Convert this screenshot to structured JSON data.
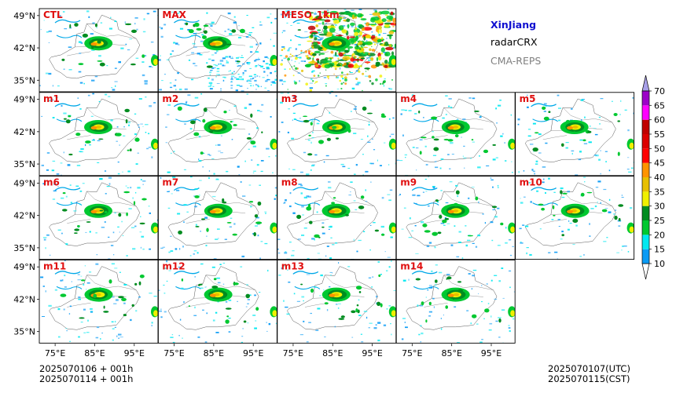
{
  "header": {
    "region": "XinJiang",
    "product": "radarCRX",
    "system": "CMA-REPS",
    "region_color": "#1010d0",
    "product_color": "#000000",
    "system_color": "#808080"
  },
  "footer": {
    "init_line1": "2025070106  +  001h",
    "init_line2": "2025070114  +  001h",
    "valid_utc": "2025070107(UTC)",
    "valid_cst": "2025070115(CST)"
  },
  "chart_data": {
    "type": "heatmap",
    "panel_label_color": "#e01010",
    "panels": [
      {
        "label": "CTL",
        "row": 0,
        "col": 0
      },
      {
        "label": "MAX",
        "row": 0,
        "col": 1
      },
      {
        "label": "MESO_1km",
        "row": 0,
        "col": 2
      },
      {
        "label": "m1",
        "row": 1,
        "col": 0
      },
      {
        "label": "m2",
        "row": 1,
        "col": 1
      },
      {
        "label": "m3",
        "row": 1,
        "col": 2
      },
      {
        "label": "m4",
        "row": 1,
        "col": 3
      },
      {
        "label": "m5",
        "row": 1,
        "col": 4
      },
      {
        "label": "m6",
        "row": 2,
        "col": 0
      },
      {
        "label": "m7",
        "row": 2,
        "col": 1
      },
      {
        "label": "m8",
        "row": 2,
        "col": 2
      },
      {
        "label": "m9",
        "row": 2,
        "col": 3
      },
      {
        "label": "m10",
        "row": 2,
        "col": 4
      },
      {
        "label": "m11",
        "row": 3,
        "col": 0
      },
      {
        "label": "m12",
        "row": 3,
        "col": 1
      },
      {
        "label": "m13",
        "row": 3,
        "col": 2
      },
      {
        "label": "m14",
        "row": 3,
        "col": 3
      }
    ],
    "lon_range": [
      71,
      101
    ],
    "lat_range": [
      32.5,
      50.5
    ],
    "lon_ticks": [
      75,
      85,
      95
    ],
    "lon_tick_labels": [
      "75°E",
      "85°E",
      "95°E"
    ],
    "lat_ticks": [
      35,
      42,
      49
    ],
    "lat_tick_labels": [
      "35°N",
      "42°N",
      "49°N"
    ],
    "colorbar": {
      "levels": [
        10,
        15,
        20,
        25,
        30,
        35,
        40,
        45,
        50,
        55,
        60,
        65,
        70
      ],
      "colors": [
        "#0a9bf5",
        "#00e8f0",
        "#00c830",
        "#008c20",
        "#f0f000",
        "#e8c000",
        "#ff9400",
        "#ff0000",
        "#dc0000",
        "#c00000",
        "#ff00ff",
        "#9c00c8",
        "#a8a0e8"
      ],
      "extend": "both"
    },
    "echo_core": {
      "lon": 86,
      "lat": 43
    }
  }
}
